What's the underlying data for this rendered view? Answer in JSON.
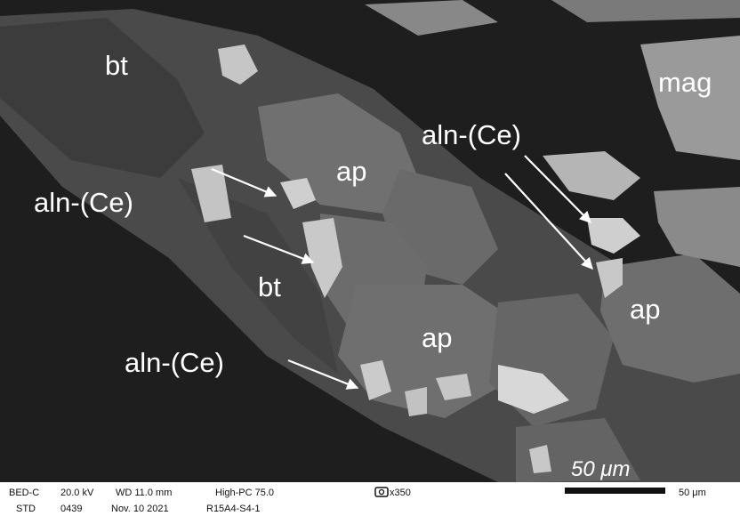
{
  "labels": [
    "bt",
    "ap",
    "aln-(Ce)",
    "aln-(Ce)",
    "mag",
    "bt",
    "ap",
    "ap",
    "aln-(Ce)"
  ],
  "scale_bar": {
    "label": "50 μm"
  },
  "footer": {
    "row1": [
      "BED-C",
      "20.0 kV",
      "WD 11.0 mm",
      "High-PC 75.0",
      "x350",
      "50 μm"
    ],
    "row2": [
      "STD",
      "0439",
      "Nov. 10 2021",
      "R15A4-S4-1"
    ]
  }
}
